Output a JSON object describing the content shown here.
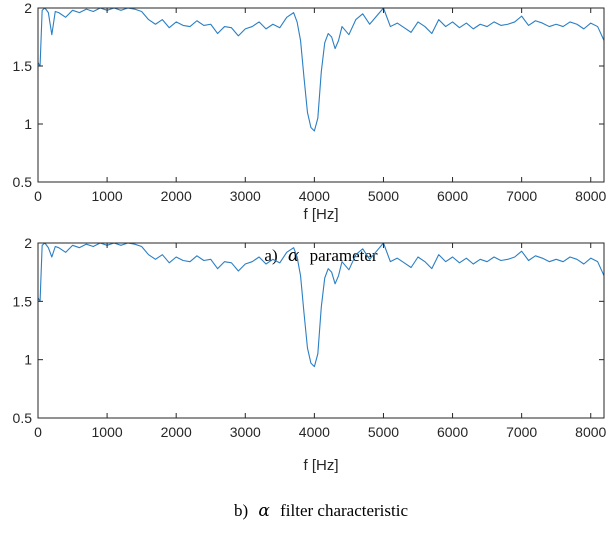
{
  "colors": {
    "series": "#2b7fc4",
    "axis": "#262626"
  },
  "chart_data": [
    {
      "type": "line",
      "caption_prefix": "a)",
      "caption_symbol": "α",
      "caption_suffix": "parameter",
      "xlabel": "f [Hz]",
      "ylabel": "",
      "xlim": [
        0,
        8192
      ],
      "ylim": [
        0.5,
        2
      ],
      "xticks": [
        0,
        1000,
        2000,
        3000,
        4000,
        5000,
        6000,
        7000,
        8000
      ],
      "yticks": [
        0.5,
        1,
        1.5,
        2
      ],
      "grid": false,
      "series": [
        {
          "x": [
            0,
            30,
            60,
            100,
            150,
            200,
            250,
            300,
            400,
            500,
            600,
            700,
            800,
            900,
            1000,
            1100,
            1200,
            1300,
            1400,
            1500,
            1600,
            1700,
            1800,
            1900,
            2000,
            2100,
            2200,
            2300,
            2400,
            2500,
            2600,
            2700,
            2800,
            2900,
            3000,
            3100,
            3200,
            3300,
            3400,
            3500,
            3600,
            3700,
            3750,
            3800,
            3850,
            3900,
            3950,
            4000,
            4050,
            4100,
            4150,
            4200,
            4250,
            4300,
            4350,
            4400,
            4500,
            4600,
            4700,
            4800,
            4900,
            5000,
            5100,
            5200,
            5300,
            5400,
            5500,
            5600,
            5700,
            5800,
            5900,
            6000,
            6100,
            6200,
            6300,
            6400,
            6500,
            6600,
            6700,
            6800,
            6900,
            7000,
            7100,
            7200,
            7300,
            7400,
            7500,
            7600,
            7700,
            7800,
            7900,
            8000,
            8100,
            8192
          ],
          "values": [
            1.53,
            1.5,
            1.98,
            2.0,
            1.96,
            1.77,
            1.97,
            1.96,
            1.92,
            1.98,
            1.96,
            1.99,
            1.97,
            2.0,
            1.98,
            2.0,
            1.98,
            2.0,
            1.99,
            1.97,
            1.9,
            1.86,
            1.9,
            1.83,
            1.88,
            1.85,
            1.84,
            1.89,
            1.85,
            1.86,
            1.78,
            1.84,
            1.83,
            1.76,
            1.82,
            1.84,
            1.88,
            1.82,
            1.86,
            1.83,
            1.92,
            1.96,
            1.88,
            1.72,
            1.4,
            1.1,
            0.97,
            0.94,
            1.05,
            1.45,
            1.7,
            1.78,
            1.75,
            1.65,
            1.72,
            1.84,
            1.77,
            1.9,
            1.95,
            1.86,
            1.93,
            2.0,
            1.84,
            1.87,
            1.83,
            1.79,
            1.88,
            1.84,
            1.78,
            1.9,
            1.84,
            1.88,
            1.83,
            1.87,
            1.82,
            1.86,
            1.84,
            1.88,
            1.85,
            1.86,
            1.88,
            1.93,
            1.85,
            1.89,
            1.87,
            1.84,
            1.86,
            1.84,
            1.88,
            1.86,
            1.82,
            1.87,
            1.84,
            1.72
          ]
        }
      ]
    },
    {
      "type": "line",
      "caption_prefix": "b)",
      "caption_symbol": "α",
      "caption_suffix": "filter characteristic",
      "xlabel": "f [Hz]",
      "ylabel": "",
      "xlim": [
        0,
        8192
      ],
      "ylim": [
        0.5,
        2
      ],
      "xticks": [
        0,
        1000,
        2000,
        3000,
        4000,
        5000,
        6000,
        7000,
        8000
      ],
      "yticks": [
        0.5,
        1,
        1.5,
        2
      ],
      "grid": false,
      "series": [
        {
          "x": [
            0,
            30,
            60,
            100,
            150,
            200,
            250,
            300,
            400,
            500,
            600,
            700,
            800,
            900,
            1000,
            1100,
            1200,
            1300,
            1400,
            1500,
            1600,
            1700,
            1800,
            1900,
            2000,
            2100,
            2200,
            2300,
            2400,
            2500,
            2600,
            2700,
            2800,
            2900,
            3000,
            3100,
            3200,
            3300,
            3400,
            3500,
            3600,
            3700,
            3750,
            3800,
            3850,
            3900,
            3950,
            4000,
            4050,
            4100,
            4150,
            4200,
            4250,
            4300,
            4350,
            4400,
            4500,
            4600,
            4700,
            4800,
            4900,
            5000,
            5100,
            5200,
            5300,
            5400,
            5500,
            5600,
            5700,
            5800,
            5900,
            6000,
            6100,
            6200,
            6300,
            6400,
            6500,
            6600,
            6700,
            6800,
            6900,
            7000,
            7100,
            7200,
            7300,
            7400,
            7500,
            7600,
            7700,
            7800,
            7900,
            8000,
            8100,
            8192
          ],
          "values": [
            1.53,
            1.5,
            1.98,
            2.0,
            1.96,
            1.88,
            1.97,
            1.96,
            1.92,
            1.98,
            1.96,
            1.99,
            1.97,
            2.0,
            1.98,
            2.0,
            1.98,
            2.0,
            1.99,
            1.97,
            1.9,
            1.86,
            1.9,
            1.83,
            1.88,
            1.85,
            1.84,
            1.89,
            1.85,
            1.86,
            1.78,
            1.84,
            1.83,
            1.76,
            1.82,
            1.84,
            1.88,
            1.82,
            1.86,
            1.83,
            1.92,
            1.96,
            1.88,
            1.72,
            1.4,
            1.1,
            0.97,
            0.94,
            1.05,
            1.45,
            1.7,
            1.78,
            1.75,
            1.65,
            1.72,
            1.84,
            1.77,
            1.9,
            1.95,
            1.86,
            1.93,
            2.0,
            1.84,
            1.87,
            1.83,
            1.79,
            1.88,
            1.84,
            1.78,
            1.9,
            1.84,
            1.88,
            1.83,
            1.87,
            1.82,
            1.86,
            1.84,
            1.88,
            1.85,
            1.86,
            1.88,
            1.93,
            1.85,
            1.89,
            1.87,
            1.84,
            1.86,
            1.84,
            1.88,
            1.86,
            1.82,
            1.87,
            1.84,
            1.72
          ]
        }
      ]
    }
  ]
}
